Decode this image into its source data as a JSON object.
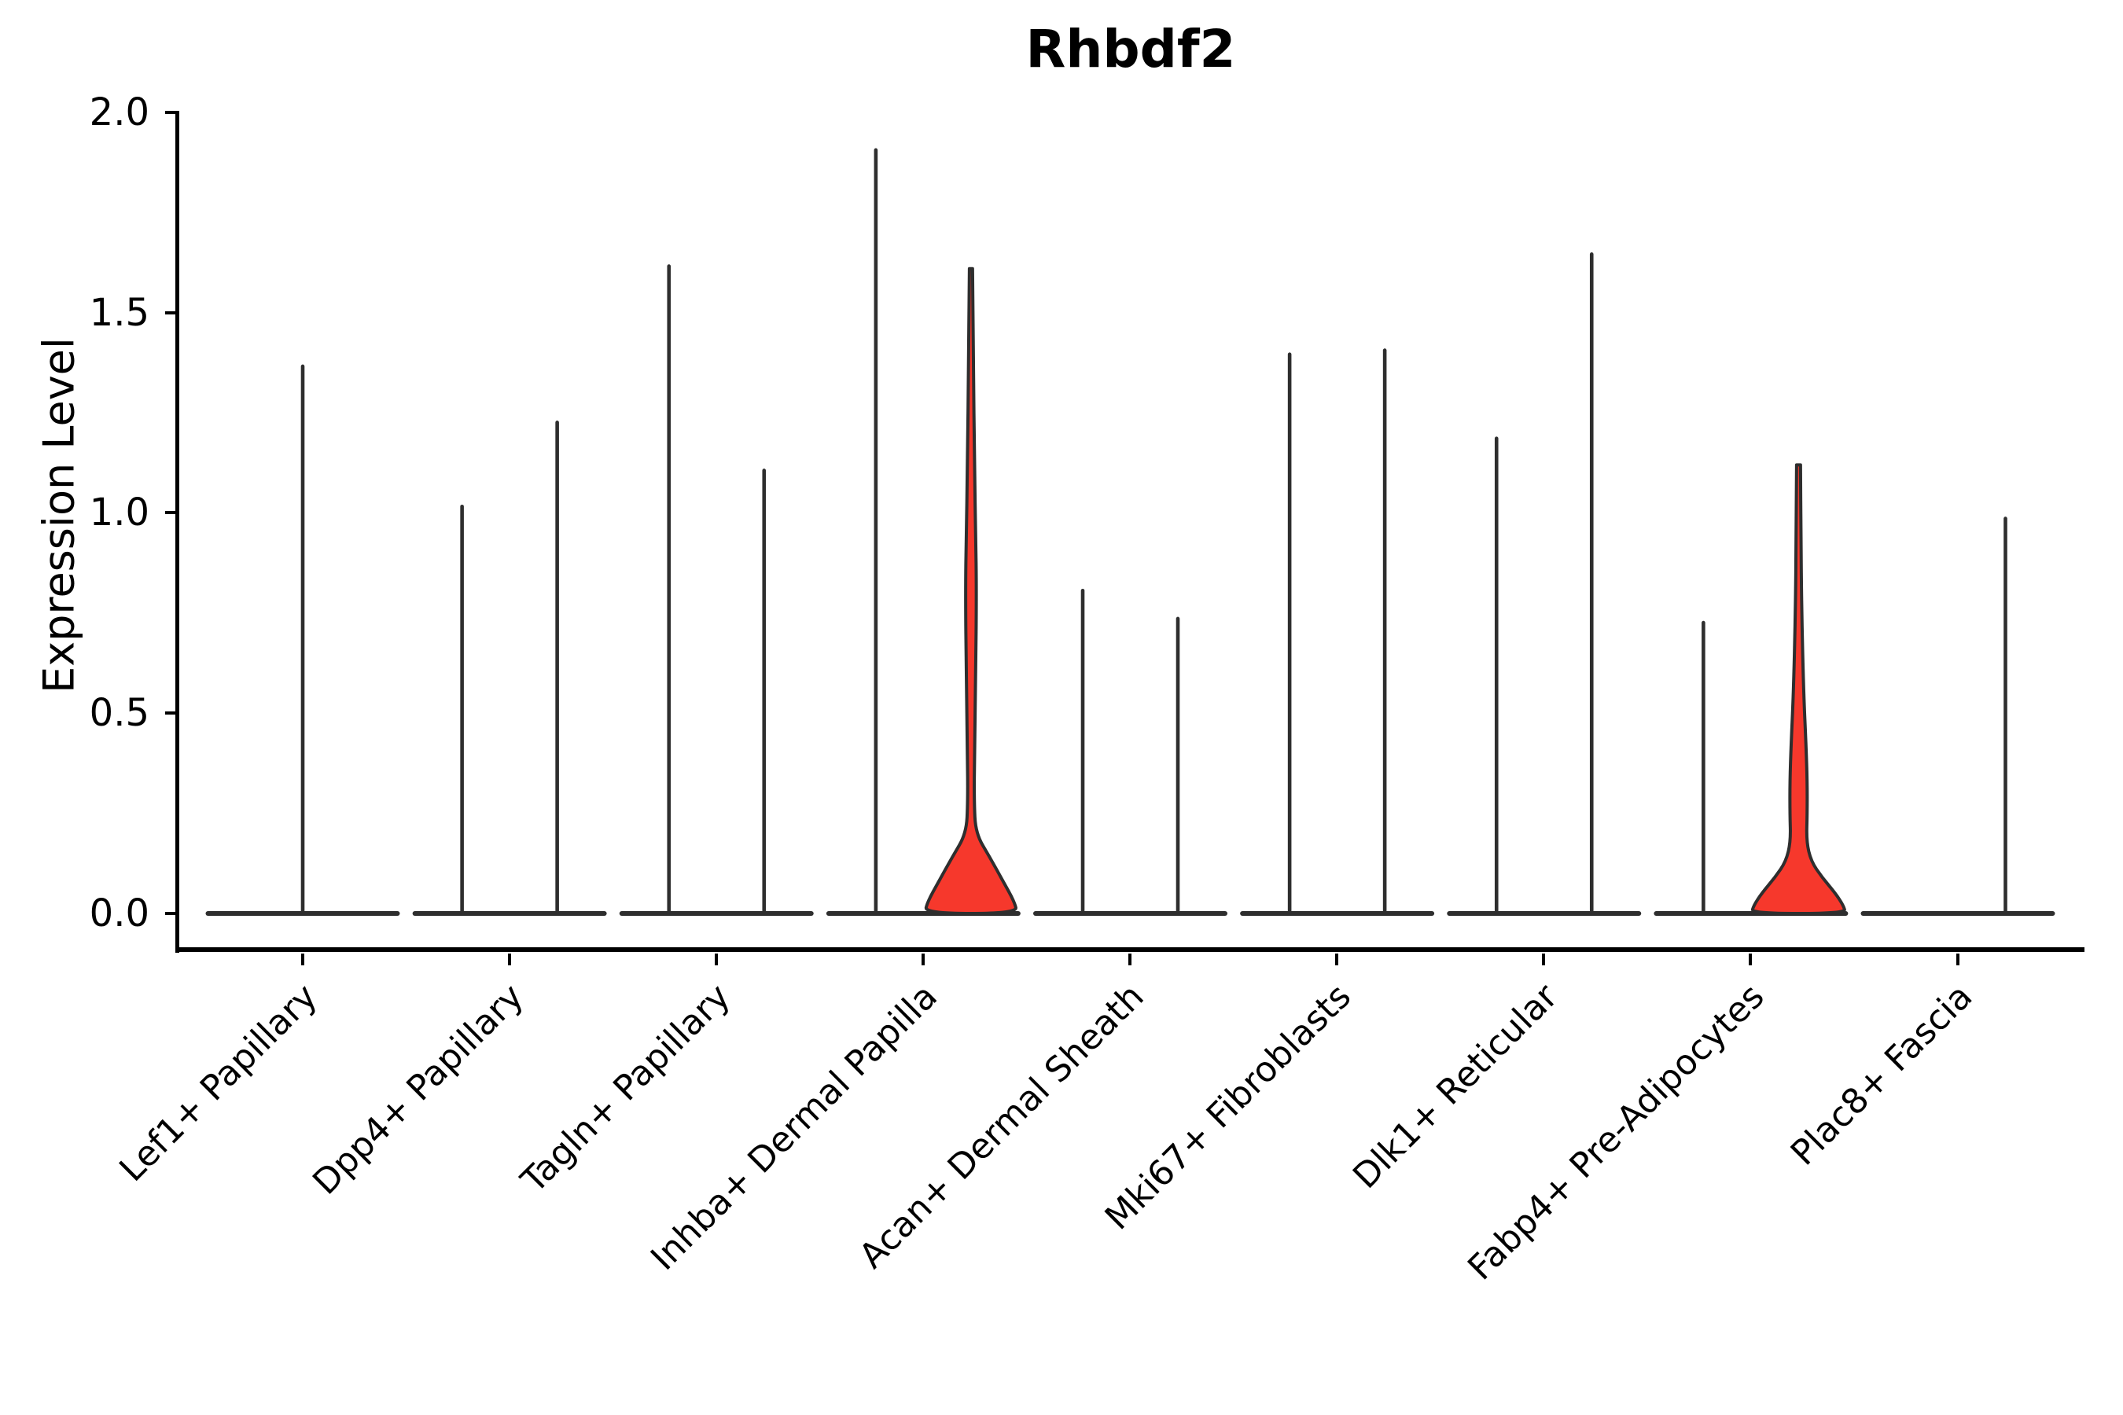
{
  "chart_data": {
    "type": "violin",
    "title": "Rhbdf2",
    "ylabel": "Expression Level",
    "xlabel": "",
    "ylim": [
      0,
      2.0
    ],
    "yticks": [
      "0.0",
      "0.5",
      "1.0",
      "1.5",
      "2.0"
    ],
    "grid": false,
    "legend": "none",
    "categories": [
      "Lef1+ Papillary",
      "Dpp4+ Papillary",
      "Tagln+ Papillary",
      "Inhba+ Dermal Papilla",
      "Acan+ Dermal Sheath",
      "Mki67+ Fibroblasts",
      "Dlk1+ Reticular",
      "Fabp4+ Pre-Adipocytes",
      "Plac8+ Fascia"
    ],
    "violins": [
      {
        "category_index": 0,
        "side": "center",
        "max_expression": 1.37,
        "filled": false
      },
      {
        "category_index": 1,
        "side": "left",
        "max_expression": 1.02,
        "filled": false
      },
      {
        "category_index": 1,
        "side": "right",
        "max_expression": 1.23,
        "filled": false
      },
      {
        "category_index": 2,
        "side": "left",
        "max_expression": 1.62,
        "filled": false
      },
      {
        "category_index": 2,
        "side": "right",
        "max_expression": 1.11,
        "filled": false
      },
      {
        "category_index": 3,
        "side": "left",
        "max_expression": 1.91,
        "filled": false
      },
      {
        "category_index": 3,
        "side": "right",
        "max_expression": 1.61,
        "filled": true,
        "profile": [
          [
            1.61,
            2
          ],
          [
            1.4,
            3
          ],
          [
            1.1,
            4.5
          ],
          [
            0.95,
            6
          ],
          [
            0.8,
            7
          ],
          [
            0.6,
            6
          ],
          [
            0.4,
            4.5
          ],
          [
            0.28,
            4
          ],
          [
            0.2,
            6
          ],
          [
            0.14,
            24
          ],
          [
            0.08,
            41
          ],
          [
            0.03,
            55
          ],
          [
            0,
            59
          ]
        ]
      },
      {
        "category_index": 4,
        "side": "left",
        "max_expression": 0.81,
        "filled": false
      },
      {
        "category_index": 4,
        "side": "right",
        "max_expression": 0.74,
        "filled": false
      },
      {
        "category_index": 5,
        "side": "left",
        "max_expression": 1.4,
        "filled": false
      },
      {
        "category_index": 5,
        "side": "right",
        "max_expression": 1.41,
        "filled": false
      },
      {
        "category_index": 6,
        "side": "left",
        "max_expression": 1.19,
        "filled": false
      },
      {
        "category_index": 6,
        "side": "right",
        "max_expression": 1.65,
        "filled": false
      },
      {
        "category_index": 7,
        "side": "left",
        "max_expression": 0.73,
        "filled": false
      },
      {
        "category_index": 7,
        "side": "right",
        "max_expression": 1.12,
        "filled": true,
        "profile": [
          [
            1.12,
            2.5
          ],
          [
            0.95,
            3
          ],
          [
            0.75,
            4
          ],
          [
            0.55,
            6.5
          ],
          [
            0.42,
            9.5
          ],
          [
            0.33,
            11
          ],
          [
            0.25,
            11
          ],
          [
            0.18,
            10
          ],
          [
            0.13,
            16
          ],
          [
            0.09,
            30
          ],
          [
            0.05,
            47
          ],
          [
            0.02,
            57
          ],
          [
            0,
            60
          ]
        ]
      },
      {
        "category_index": 8,
        "side": "left",
        "max_expression": 0,
        "filled": false
      },
      {
        "category_index": 8,
        "side": "right",
        "max_expression": 0.99,
        "filled": false
      }
    ]
  },
  "colors": {
    "violin_fill_highlight": "#F6382C",
    "violin_outline": "#2E2E2E",
    "axis": "#000000",
    "background": "#FFFFFF"
  }
}
